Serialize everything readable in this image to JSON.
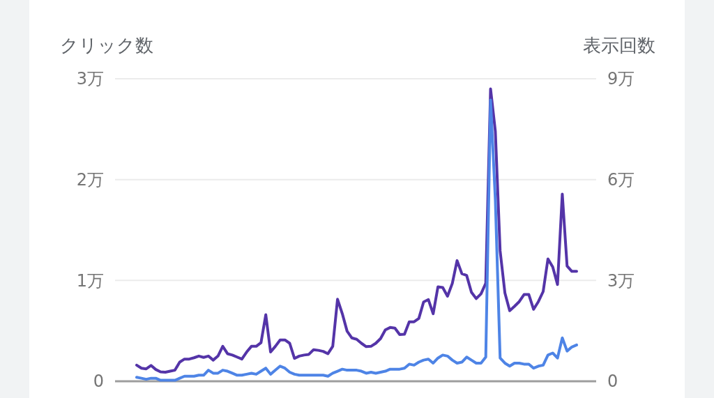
{
  "chart_data": {
    "type": "line",
    "ylabel": "クリック数",
    "y2label": "表示回数",
    "categories": [
      null,
      null,
      null,
      null,
      null,
      null,
      null,
      null,
      null,
      null,
      null,
      null,
      null,
      null,
      null,
      null,
      null,
      null,
      null,
      null,
      null,
      null,
      null,
      null,
      null,
      null,
      null,
      null,
      null,
      null,
      null,
      null,
      null,
      null,
      null,
      null,
      null,
      null,
      null,
      null,
      null,
      null,
      null,
      null,
      null,
      null,
      null,
      null,
      null,
      null,
      null,
      null,
      null,
      null,
      null,
      null,
      null,
      null,
      null,
      null,
      null,
      null,
      null,
      null,
      null,
      null,
      null,
      null,
      null,
      null,
      null,
      null,
      null,
      null,
      null,
      null,
      null,
      null,
      null,
      null,
      null,
      null,
      null,
      null,
      null,
      null,
      null,
      null,
      null,
      null,
      null,
      null,
      null
    ],
    "series": [
      {
        "color": "#5434a8",
        "axis": "y2",
        "values": [
          0.48,
          0.39,
          0.37,
          0.47,
          0.35,
          0.28,
          0.27,
          0.3,
          0.33,
          0.57,
          0.66,
          0.66,
          0.7,
          0.75,
          0.71,
          0.75,
          0.63,
          0.75,
          1.04,
          0.82,
          0.78,
          0.72,
          0.66,
          0.87,
          1.04,
          1.04,
          1.15,
          1.98,
          0.87,
          1.04,
          1.23,
          1.23,
          1.13,
          0.68,
          0.75,
          0.78,
          0.8,
          0.94,
          0.92,
          0.89,
          0.82,
          1.04,
          2.44,
          2.01,
          1.49,
          1.29,
          1.25,
          1.13,
          1.03,
          1.04,
          1.13,
          1.27,
          1.53,
          1.6,
          1.58,
          1.39,
          1.4,
          1.77,
          1.77,
          1.87,
          2.36,
          2.43,
          2.01,
          2.81,
          2.79,
          2.53,
          2.91,
          3.59,
          3.2,
          3.15,
          2.65,
          2.46,
          2.6,
          2.92,
          8.7,
          7.44,
          3.88,
          2.63,
          2.1,
          2.23,
          2.37,
          2.58,
          2.58,
          2.14,
          2.37,
          2.67,
          3.64,
          3.4,
          2.88,
          5.57,
          3.43,
          3.27,
          3.27
        ]
      },
      {
        "color": "#4e84e6",
        "values": [
          0.04,
          0.03,
          0.02,
          0.03,
          0.03,
          0.01,
          0.01,
          0.01,
          0.01,
          0.03,
          0.05,
          0.05,
          0.05,
          0.06,
          0.06,
          0.11,
          0.08,
          0.08,
          0.11,
          0.1,
          0.08,
          0.06,
          0.06,
          0.07,
          0.08,
          0.07,
          0.1,
          0.13,
          0.07,
          0.11,
          0.15,
          0.13,
          0.09,
          0.07,
          0.06,
          0.06,
          0.06,
          0.06,
          0.06,
          0.06,
          0.05,
          0.08,
          0.1,
          0.12,
          0.11,
          0.11,
          0.11,
          0.1,
          0.08,
          0.09,
          0.08,
          0.09,
          0.1,
          0.12,
          0.12,
          0.12,
          0.13,
          0.17,
          0.16,
          0.19,
          0.21,
          0.22,
          0.18,
          0.23,
          0.26,
          0.25,
          0.21,
          0.18,
          0.19,
          0.24,
          0.21,
          0.18,
          0.18,
          0.24,
          2.79,
          1.8,
          0.23,
          0.18,
          0.15,
          0.18,
          0.18,
          0.17,
          0.17,
          0.13,
          0.15,
          0.16,
          0.26,
          0.28,
          0.23,
          0.43,
          0.3,
          0.34,
          0.36
        ]
      }
    ],
    "ylim": [
      0,
      3
    ],
    "yticks": [
      0,
      {
        "value": 1,
        "label": "1万"
      },
      {
        "value": 2,
        "label": "2万"
      },
      {
        "value": 3,
        "label": "3万"
      }
    ],
    "y2lim": [
      0,
      9
    ],
    "y2ticks": [
      0,
      {
        "value": 3,
        "label": "3万"
      },
      {
        "value": 6,
        "label": "6万"
      },
      {
        "value": 9,
        "label": "9万"
      }
    ],
    "grid": "y",
    "line_style": "solid",
    "marker": "none"
  }
}
